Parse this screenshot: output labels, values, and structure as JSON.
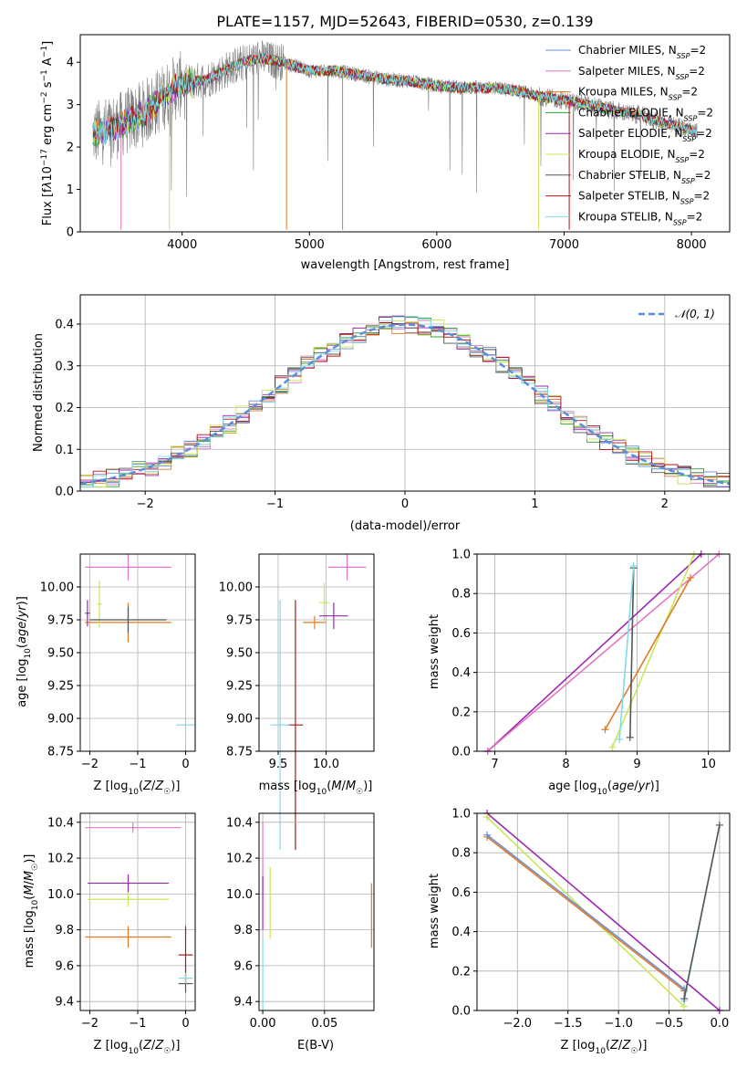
{
  "title": "PLATE=1157, MJD=52643, FIBERID=0530, z=0.139",
  "colors": {
    "Chabrier MILES": "#6b8fd6",
    "Salpeter MILES": "#e377c2",
    "Kroupa MILES": "#e07a24",
    "Chabrier ELODIE": "#2ca02c",
    "Salpeter ELODIE": "#9b27b0",
    "Kroupa ELODIE": "#c8e65a",
    "Chabrier STELIB": "#555555",
    "Salpeter STELIB": "#b01515",
    "Kroupa STELIB": "#7fdbe6",
    "data": "#808080",
    "normal": "#5b8dd9"
  },
  "chart_data": [
    {
      "id": "spectrum",
      "type": "line",
      "xlabel": "wavelength [Angstrom, rest frame]",
      "ylabel": "Flux [fλ10⁻¹⁷ erg cm⁻² s⁻¹ A⁻¹]",
      "xlim": [
        3200,
        8300
      ],
      "ylim": [
        0,
        4.65
      ],
      "xticks": [
        4000,
        5000,
        6000,
        7000,
        8000
      ],
      "yticks": [
        0,
        1,
        2,
        3,
        4
      ],
      "legend_position": "upper-right",
      "legend": [
        "Chabrier MILES, NSSP=2",
        "Salpeter MILES, NSSP=2",
        "Kroupa MILES, NSSP=2",
        "Chabrier ELODIE, NSSP=2",
        "Salpeter ELODIE, NSSP=2",
        "Kroupa ELODIE, NSSP=2",
        "Chabrier STELIB, NSSP=2",
        "Salpeter STELIB, NSSP=2",
        "Kroupa STELIB, NSSP=2"
      ],
      "model_curve": {
        "wavelength": [
          3300,
          3500,
          3700,
          3900,
          4000,
          4200,
          4400,
          4600,
          4800,
          5000,
          5200,
          5400,
          5600,
          5800,
          6000,
          6200,
          6400,
          6600,
          6800,
          7000,
          7200,
          7400,
          7600,
          7800,
          8000,
          8050
        ],
        "flux": [
          2.3,
          2.5,
          2.8,
          3.3,
          3.5,
          3.6,
          3.9,
          4.1,
          4.0,
          3.8,
          3.8,
          3.7,
          3.6,
          3.55,
          3.45,
          3.4,
          3.4,
          3.35,
          3.2,
          3.1,
          3.0,
          2.85,
          2.75,
          2.55,
          2.4,
          2.35
        ]
      }
    },
    {
      "id": "residuals",
      "type": "line",
      "xlabel": "(data-model)/error",
      "ylabel": "Normed distribution",
      "xlim": [
        -2.5,
        2.5
      ],
      "ylim": [
        0,
        0.47
      ],
      "xticks": [
        -2,
        -1,
        0,
        1,
        2
      ],
      "yticks": [
        0.0,
        0.1,
        0.2,
        0.3,
        0.4
      ],
      "grid": true,
      "legend": [
        "𝒩(0, 1)"
      ],
      "legend_position": "upper-right"
    },
    {
      "id": "age-vs-Z",
      "type": "scatter",
      "xlabel": "Z [log10(Z/Z☉)]",
      "ylabel": "age  [log10(age/yr)]",
      "xlim": [
        -2.2,
        0.2
      ],
      "ylim": [
        8.75,
        10.25
      ],
      "xticks": [
        -2,
        -1,
        0
      ],
      "yticks": [
        8.75,
        9.0,
        9.25,
        9.5,
        9.75,
        10.0
      ],
      "grid": true,
      "points": [
        {
          "model": "Salpeter MILES",
          "x": -1.2,
          "y": 10.15,
          "xerr": 0.9,
          "yerr": 0.1
        },
        {
          "model": "Kroupa MILES",
          "x": -1.2,
          "y": 9.73,
          "xerr": 0.9,
          "yerr": 0.15
        },
        {
          "model": "Kroupa ELODIE",
          "x": -1.8,
          "y": 9.87,
          "xerr": 0.05,
          "yerr": 0.18
        },
        {
          "model": "Salpeter ELODIE",
          "x": -2.05,
          "y": 9.8,
          "xerr": 0.05,
          "yerr": 0.1
        },
        {
          "model": "Chabrier STELIB",
          "x": -1.2,
          "y": 9.75,
          "xerr": 0.8,
          "yerr": 0.1
        },
        {
          "model": "Kroupa STELIB",
          "x": 0.0,
          "y": 8.95,
          "xerr": 0.2,
          "yerr": 0.05
        }
      ]
    },
    {
      "id": "age-vs-mass",
      "type": "scatter",
      "xlabel": "mass [log10(M/M☉)]",
      "ylabel": "",
      "xlim": [
        9.3,
        10.5
      ],
      "ylim": [
        8.75,
        10.25
      ],
      "xticks": [
        9.5,
        10.0
      ],
      "yticks": [
        8.75,
        9.0,
        9.25,
        9.5,
        9.75,
        10.0
      ],
      "grid": true,
      "points": [
        {
          "model": "Salpeter MILES",
          "x": 10.22,
          "y": 10.15,
          "xerr": 0.2,
          "yerr": 0.1
        },
        {
          "model": "Kroupa MILES",
          "x": 9.88,
          "y": 9.73,
          "xerr": 0.12,
          "yerr": 0.05
        },
        {
          "model": "Kroupa ELODIE",
          "x": 9.98,
          "y": 9.88,
          "xerr": 0.05,
          "yerr": 0.15
        },
        {
          "model": "Salpeter ELODIE",
          "x": 10.08,
          "y": 9.78,
          "xerr": 0.15,
          "yerr": 0.1
        },
        {
          "model": "Salpeter STELIB",
          "x": 9.68,
          "y": 8.95,
          "xerr": 0.08,
          "yerr": 0.95
        },
        {
          "model": "Kroupa STELIB",
          "x": 9.52,
          "y": 8.95,
          "xerr": 0.1,
          "yerr": 0.95
        }
      ]
    },
    {
      "id": "weight-vs-age",
      "type": "line",
      "xlabel": "age  [log10(age/yr)]",
      "ylabel": "mass weight",
      "xlim": [
        6.75,
        10.3
      ],
      "ylim": [
        0,
        1
      ],
      "xticks": [
        7,
        8,
        9,
        10
      ],
      "yticks": [
        0.0,
        0.2,
        0.4,
        0.6,
        0.8,
        1.0
      ],
      "grid": true,
      "series": [
        {
          "model": "Salpeter ELODIE",
          "x": [
            6.9,
            9.9
          ],
          "y": [
            0.0,
            1.0
          ]
        },
        {
          "model": "Salpeter MILES",
          "x": [
            6.9,
            10.15
          ],
          "y": [
            0.0,
            1.0
          ]
        },
        {
          "model": "Kroupa ELODIE",
          "x": [
            8.65,
            9.8
          ],
          "y": [
            0.02,
            1.0
          ]
        },
        {
          "model": "Kroupa MILES",
          "x": [
            8.55,
            9.75
          ],
          "y": [
            0.11,
            0.88
          ]
        },
        {
          "model": "Chabrier STELIB",
          "x": [
            8.9,
            8.95
          ],
          "y": [
            0.07,
            0.93
          ]
        },
        {
          "model": "Kroupa STELIB",
          "x": [
            8.75,
            8.95
          ],
          "y": [
            0.06,
            0.94
          ]
        }
      ]
    },
    {
      "id": "mass-vs-Z",
      "type": "scatter",
      "xlabel": "Z [log10(Z/Z☉)]",
      "ylabel": "mass [log10(M/M☉)]",
      "xlim": [
        -2.2,
        0.2
      ],
      "ylim": [
        9.35,
        10.45
      ],
      "xticks": [
        -2,
        -1,
        0
      ],
      "yticks": [
        9.4,
        9.6,
        9.8,
        10.0,
        10.2,
        10.4
      ],
      "grid": true,
      "points": [
        {
          "model": "Salpeter MILES",
          "x": -1.1,
          "y": 10.37,
          "xerr": 1.0,
          "yerr": 0.03
        },
        {
          "model": "Salpeter ELODIE",
          "x": -1.2,
          "y": 10.06,
          "xerr": 0.85,
          "yerr": 0.05
        },
        {
          "model": "Kroupa ELODIE",
          "x": -1.2,
          "y": 9.97,
          "xerr": 0.85,
          "yerr": 0.04
        },
        {
          "model": "Kroupa MILES",
          "x": -1.2,
          "y": 9.76,
          "xerr": 0.9,
          "yerr": 0.06
        },
        {
          "model": "Salpeter STELIB",
          "x": 0.0,
          "y": 9.66,
          "xerr": 0.15,
          "yerr": 0.16
        },
        {
          "model": "Chabrier STELIB",
          "x": 0.0,
          "y": 9.5,
          "xerr": 0.15,
          "yerr": 0.05
        },
        {
          "model": "Kroupa STELIB",
          "x": 0.0,
          "y": 9.53,
          "xerr": 0.15,
          "yerr": 0.03
        }
      ]
    },
    {
      "id": "mass-vs-EBV",
      "type": "scatter",
      "xlabel": "E(B-V)",
      "ylabel": "",
      "xlim": [
        -0.003,
        0.09
      ],
      "ylim": [
        9.35,
        10.45
      ],
      "xticks": [
        0.0,
        0.05
      ],
      "yticks": [
        9.4,
        9.6,
        9.8,
        10.0,
        10.2,
        10.4
      ],
      "grid": true,
      "points": [
        {
          "model": "Salpeter MILES",
          "x": 0.0,
          "y": 10.2,
          "yerr": 0.2
        },
        {
          "model": "Salpeter ELODIE",
          "x": 0.0,
          "y": 9.95,
          "yerr": 0.15
        },
        {
          "model": "Kroupa ELODIE",
          "x": 0.006,
          "y": 9.95,
          "yerr": 0.2
        },
        {
          "model": "Kroupa STELIB",
          "x": 0.0,
          "y": 9.55,
          "yerr": 0.2
        },
        {
          "model": "Kroupa MILES",
          "x": 0.088,
          "y": 9.88,
          "yerr": 0.18
        }
      ]
    },
    {
      "id": "weight-vs-Z",
      "type": "line",
      "xlabel": "Z [log10(Z/Z☉)]",
      "ylabel": "mass weight",
      "xlim": [
        -2.4,
        0.1
      ],
      "ylim": [
        0,
        1
      ],
      "xticks": [
        -2.0,
        -1.5,
        -1.0,
        -0.5,
        0.0
      ],
      "yticks": [
        0.0,
        0.2,
        0.4,
        0.6,
        0.8,
        1.0
      ],
      "grid": true,
      "series": [
        {
          "model": "Salpeter ELODIE",
          "x": [
            -2.3,
            0.0
          ],
          "y": [
            1.0,
            0.0
          ]
        },
        {
          "model": "Kroupa ELODIE",
          "x": [
            -2.3,
            -0.35
          ],
          "y": [
            0.98,
            0.02
          ]
        },
        {
          "model": "Kroupa MILES",
          "x": [
            -2.3,
            -0.35
          ],
          "y": [
            0.88,
            0.1
          ]
        },
        {
          "model": "Chabrier MILES",
          "x": [
            -2.3,
            -0.35
          ],
          "y": [
            0.89,
            0.11
          ]
        },
        {
          "model": "Kroupa STELIB",
          "x": [
            -0.35,
            0.0
          ],
          "y": [
            0.05,
            0.94
          ]
        },
        {
          "model": "Chabrier STELIB",
          "x": [
            -0.35,
            0.0
          ],
          "y": [
            0.06,
            0.94
          ]
        }
      ]
    }
  ]
}
